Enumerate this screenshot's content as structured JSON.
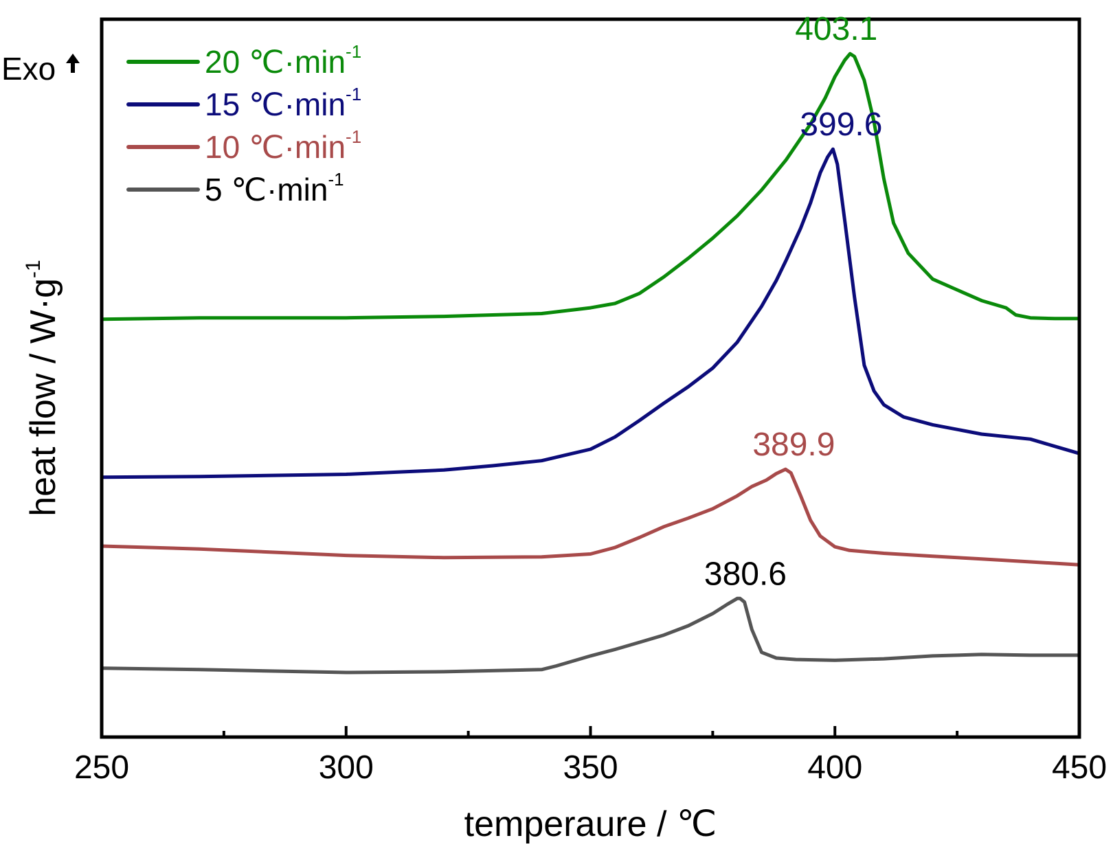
{
  "chart_data": {
    "type": "line",
    "xlabel": "temperaure / ℃",
    "ylabel": "heat flow / W·g",
    "ylabel_sup": "-1",
    "exo_label": "Exo",
    "xlim": [
      250,
      450
    ],
    "x_ticks": [
      "250",
      "300",
      "350",
      "400",
      "450"
    ],
    "x_tick_values": [
      250,
      300,
      350,
      400,
      450
    ],
    "x_minor_ticks": [
      275,
      325,
      375,
      425
    ],
    "y_ticks_shown": false,
    "ylim": [
      0,
      100
    ],
    "grid": false,
    "legend_position": "top-left",
    "series": [
      {
        "name": "20 ℃·min",
        "name_sup": "-1",
        "color": "#0a8a0a",
        "peak_label": "403.1",
        "x": [
          250,
          270,
          300,
          320,
          330,
          340,
          350,
          355,
          360,
          365,
          370,
          375,
          380,
          385,
          390,
          395,
          398,
          400,
          402,
          403.1,
          404,
          406,
          408,
          410,
          412,
          415,
          420,
          425,
          430,
          435,
          437,
          440,
          445,
          450
        ],
        "y": [
          58.2,
          58.4,
          58.4,
          58.6,
          58.8,
          59.0,
          59.8,
          60.4,
          61.8,
          64.1,
          66.7,
          69.5,
          72.6,
          76.2,
          80.4,
          85.4,
          89.0,
          92.0,
          94.3,
          95.2,
          94.8,
          91.5,
          85.7,
          77.8,
          71.6,
          67.4,
          63.8,
          62.3,
          60.8,
          59.8,
          58.8,
          58.4,
          58.3,
          58.3
        ]
      },
      {
        "name": "15 ℃·min",
        "name_sup": "-1",
        "color": "#0c0c7a",
        "peak_label": "399.6",
        "x": [
          250,
          270,
          300,
          320,
          330,
          340,
          345,
          350,
          355,
          360,
          365,
          370,
          375,
          380,
          385,
          388,
          390,
          393,
          395,
          397,
          398.5,
          399.6,
          400.5,
          402,
          404,
          406,
          408,
          410,
          414,
          420,
          430,
          440,
          445,
          450
        ],
        "y": [
          36.2,
          36.3,
          36.6,
          37.2,
          37.8,
          38.5,
          39.3,
          40.1,
          41.8,
          44.1,
          46.5,
          48.8,
          51.4,
          55.0,
          60.0,
          63.6,
          66.4,
          70.9,
          74.4,
          78.6,
          80.8,
          81.9,
          79.8,
          72.0,
          61.3,
          51.8,
          48.2,
          46.3,
          44.6,
          43.5,
          42.2,
          41.5,
          40.5,
          39.5
        ]
      },
      {
        "name": "10 ℃·min",
        "name_sup": "-1",
        "color": "#a84a4a",
        "peak_label": "389.9",
        "x": [
          250,
          270,
          300,
          320,
          340,
          350,
          355,
          360,
          365,
          370,
          375,
          380,
          383,
          386,
          388,
          389.9,
          391,
          393,
          395,
          397,
          400,
          403,
          410,
          420,
          430,
          440,
          450
        ],
        "y": [
          26.6,
          26.2,
          25.3,
          25.0,
          25.1,
          25.5,
          26.4,
          27.8,
          29.3,
          30.5,
          31.8,
          33.6,
          34.9,
          35.8,
          36.7,
          37.3,
          36.8,
          33.6,
          30.2,
          28.0,
          26.5,
          26.0,
          25.6,
          25.2,
          24.8,
          24.4,
          24.0
        ]
      },
      {
        "name": "5 ℃·min",
        "name_sup": "-1",
        "color": "#555555",
        "peak_label": "380.6",
        "x": [
          250,
          270,
          300,
          320,
          340,
          343,
          350,
          355,
          360,
          365,
          370,
          375,
          378,
          380,
          380.6,
          381.5,
          383,
          385,
          388,
          392,
          400,
          410,
          420,
          430,
          440,
          450
        ],
        "y": [
          9.6,
          9.4,
          9.0,
          9.1,
          9.4,
          9.9,
          11.3,
          12.2,
          13.2,
          14.2,
          15.5,
          17.2,
          18.5,
          19.3,
          19.3,
          18.8,
          15.0,
          11.8,
          11.0,
          10.8,
          10.7,
          10.9,
          11.3,
          11.5,
          11.4,
          11.4
        ]
      }
    ]
  }
}
